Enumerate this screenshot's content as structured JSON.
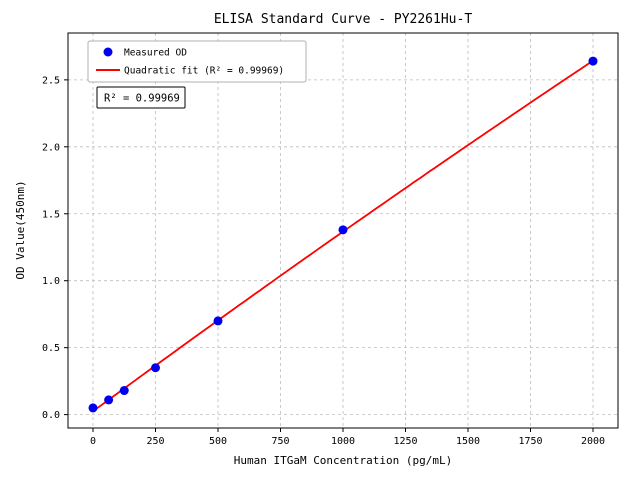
{
  "figure": {
    "background": "#ffffff"
  },
  "chart_data": {
    "type": "scatter",
    "title": "ELISA Standard Curve - PY2261Hu-T",
    "xlabel": "Human ITGaM Concentration (pg/mL)",
    "ylabel": "OD Value(450nm)",
    "xlim": [
      -100,
      2100
    ],
    "ylim": [
      -0.1,
      2.85
    ],
    "xticks": [
      0,
      250,
      500,
      750,
      1000,
      1250,
      1500,
      1750,
      2000
    ],
    "yticks": [
      0.0,
      0.5,
      1.0,
      1.5,
      2.0,
      2.5
    ],
    "grid": true,
    "grid_style": "dashed",
    "legend_position": "upper-left",
    "series": [
      {
        "name": "Measured OD",
        "type": "scatter",
        "marker": "circle",
        "color": "#0000ee",
        "x": [
          0,
          62.5,
          125,
          250,
          500,
          1000,
          2000
        ],
        "y": [
          0.05,
          0.11,
          0.18,
          0.35,
          0.7,
          1.38,
          2.64
        ]
      },
      {
        "name": "Quadratic fit (R² = 0.99969)",
        "type": "line",
        "fit": "quadratic",
        "color": "#ff0000"
      }
    ],
    "annotation": "R² = 0.99969"
  }
}
